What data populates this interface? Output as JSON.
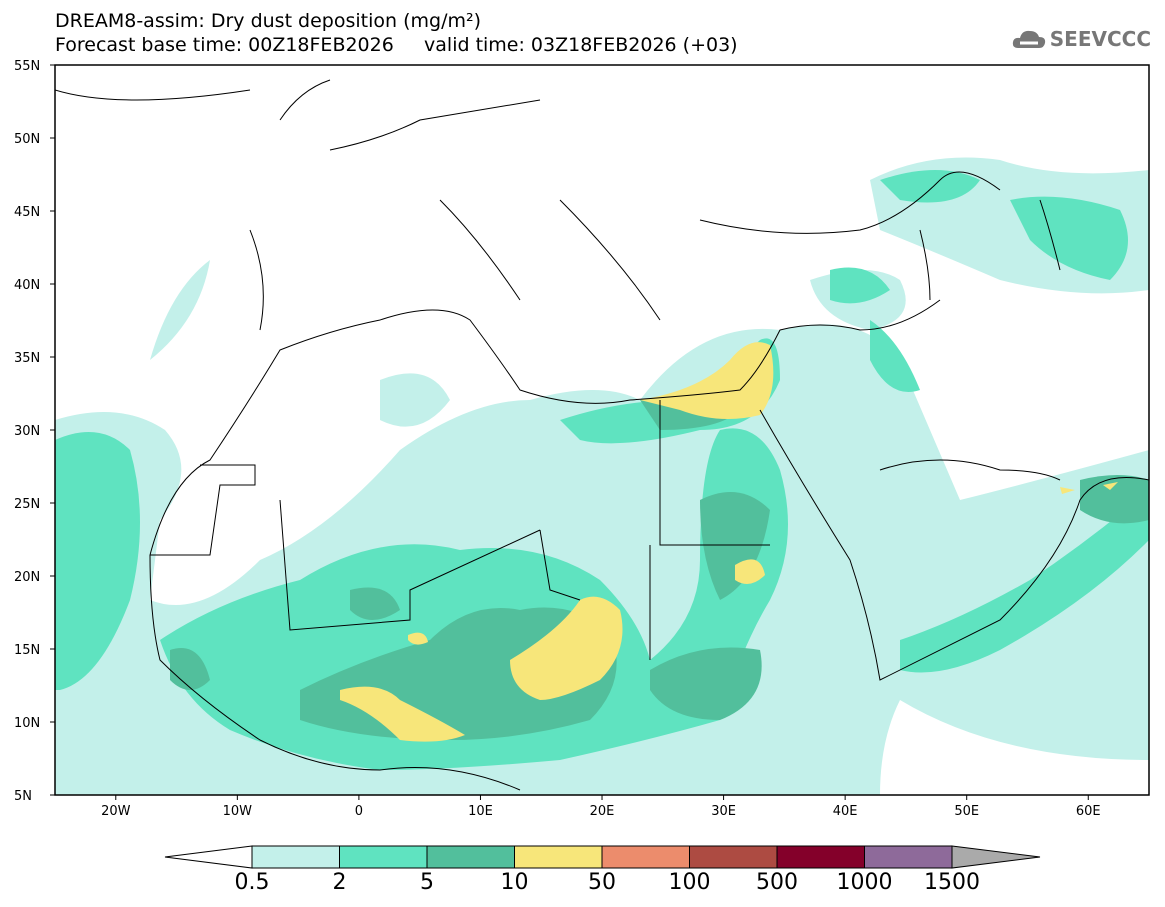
{
  "title": "DREAM8-assim: Dry dust deposition (mg/m²)",
  "subtitle": "Forecast base time: 00Z18FEB2026     valid time: 03Z18FEB2026 (+03)",
  "logo_text": "SEEVCCC",
  "map": {
    "lon_range": [
      -25,
      65
    ],
    "lat_range": [
      5,
      55
    ],
    "lat_labels": [
      "55N",
      "50N",
      "45N",
      "40N",
      "35N",
      "30N",
      "25N",
      "20N",
      "15N",
      "10N",
      "5N"
    ],
    "lon_labels": [
      "20W",
      "10W",
      "0",
      "10E",
      "20E",
      "30E",
      "40E",
      "50E",
      "60E"
    ]
  },
  "colorbar": {
    "labels": [
      "0.5",
      "2",
      "5",
      "10",
      "50",
      "100",
      "500",
      "1000",
      "1500"
    ],
    "colors": [
      "#c3f0ea",
      "#5fe3c0",
      "#52bf9c",
      "#f7e67a",
      "#ec8c6c",
      "#ad4b42",
      "#84002a",
      "#8e6a9a"
    ],
    "over_color": "#aaaaaa",
    "under_color": "#ffffff"
  }
}
